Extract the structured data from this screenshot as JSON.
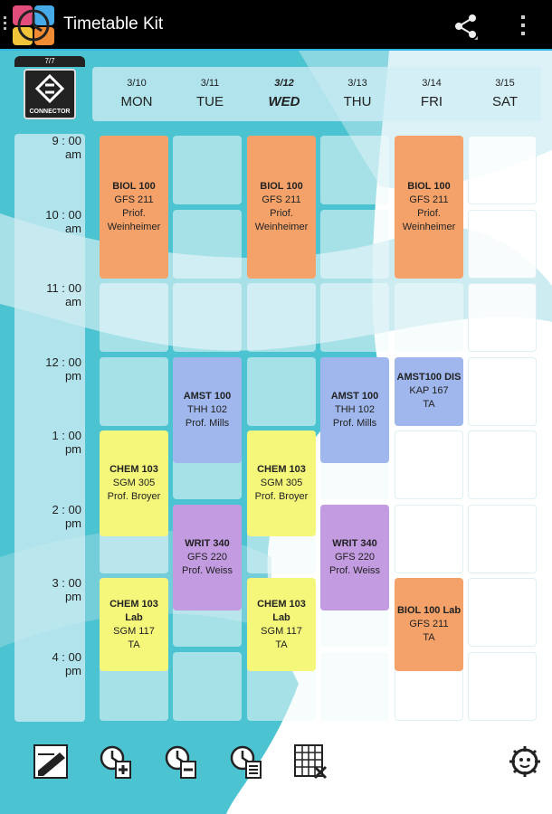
{
  "app": {
    "title": "Timetable Kit"
  },
  "connector": {
    "tag": "7/7",
    "label": "CONNECTOR"
  },
  "days": [
    {
      "date": "3/10",
      "name": "MON",
      "today": false
    },
    {
      "date": "3/11",
      "name": "TUE",
      "today": false
    },
    {
      "date": "3/12",
      "name": "WED",
      "today": true
    },
    {
      "date": "3/13",
      "name": "THU",
      "today": false
    },
    {
      "date": "3/14",
      "name": "FRI",
      "today": false
    },
    {
      "date": "3/15",
      "name": "SAT",
      "today": false
    }
  ],
  "times": [
    {
      "t": "9 : 00",
      "p": "am"
    },
    {
      "t": "10 : 00",
      "p": "am"
    },
    {
      "t": "11 : 00",
      "p": "am"
    },
    {
      "t": "12 : 00",
      "p": "pm"
    },
    {
      "t": "1 : 00",
      "p": "pm"
    },
    {
      "t": "2 : 00",
      "p": "pm"
    },
    {
      "t": "3 : 00",
      "p": "pm"
    },
    {
      "t": "4 : 00",
      "p": "pm"
    }
  ],
  "events": [
    {
      "day": 0,
      "start": 0,
      "len": 2,
      "title": "BIOL 100",
      "room": "GFS 211",
      "who": "Priof. Weinheimer",
      "color": "#f5a26a"
    },
    {
      "day": 2,
      "start": 0,
      "len": 2,
      "title": "BIOL 100",
      "room": "GFS 211",
      "who": "Priof. Weinheimer",
      "color": "#f5a26a"
    },
    {
      "day": 4,
      "start": 0,
      "len": 2,
      "title": "BIOL 100",
      "room": "GFS 211",
      "who": "Priof. Weinheimer",
      "color": "#f5a26a"
    },
    {
      "day": 1,
      "start": 3,
      "len": 1.5,
      "title": "AMST 100",
      "room": "THH 102",
      "who": "Prof. Mills",
      "color": "#9fb7ec"
    },
    {
      "day": 3,
      "start": 3,
      "len": 1.5,
      "title": "AMST 100",
      "room": "THH 102",
      "who": "Prof. Mills",
      "color": "#9fb7ec"
    },
    {
      "day": 4,
      "start": 3,
      "len": 1,
      "title": "AMST100 DIS",
      "room": "KAP 167",
      "who": "TA",
      "color": "#9fb7ec"
    },
    {
      "day": 0,
      "start": 4,
      "len": 1.5,
      "title": "CHEM 103",
      "room": "SGM 305",
      "who": "Prof. Broyer",
      "color": "#f4f77a"
    },
    {
      "day": 2,
      "start": 4,
      "len": 1.5,
      "title": "CHEM 103",
      "room": "SGM 305",
      "who": "Prof. Broyer",
      "color": "#f4f77a"
    },
    {
      "day": 1,
      "start": 5,
      "len": 1.5,
      "title": "WRIT 340",
      "room": "GFS 220",
      "who": "Prof. Weiss",
      "color": "#c39be0"
    },
    {
      "day": 3,
      "start": 5,
      "len": 1.5,
      "title": "WRIT 340",
      "room": "GFS 220",
      "who": "Prof. Weiss",
      "color": "#c39be0"
    },
    {
      "day": 0,
      "start": 6,
      "len": 1.33,
      "title": "CHEM 103 Lab",
      "room": "SGM 117",
      "who": "TA",
      "color": "#f4f77a"
    },
    {
      "day": 2,
      "start": 6,
      "len": 1.33,
      "title": "CHEM 103 Lab",
      "room": "SGM 117",
      "who": "TA",
      "color": "#f4f77a"
    },
    {
      "day": 4,
      "start": 6,
      "len": 1.33,
      "title": "BIOL 100 Lab",
      "room": "GFS 211",
      "who": "TA",
      "color": "#f5a26a"
    }
  ],
  "toolbar": {
    "icons": [
      "edit-icon",
      "add-time-icon",
      "remove-time-icon",
      "time-settings-icon",
      "clear-grid-icon",
      "settings-gear-icon"
    ]
  }
}
